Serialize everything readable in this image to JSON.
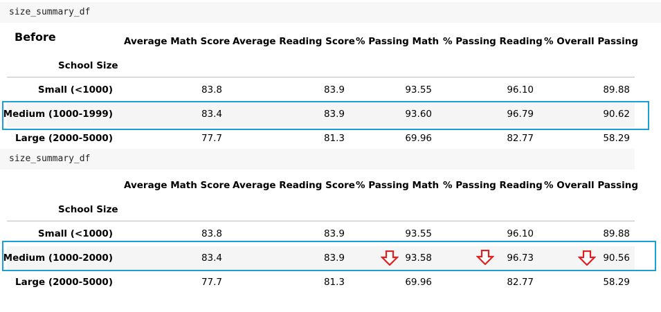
{
  "code_label": "size_summary_df",
  "before_label": "Before",
  "columns": [
    "Average Math Score",
    "Average Reading Score",
    "% Passing Math",
    "% Passing Reading",
    "% Overall Passing"
  ],
  "index_name": "School Size",
  "table_before": {
    "rows": [
      {
        "label": "Small (<1000)",
        "values": [
          "83.8",
          "83.9",
          "93.55",
          "96.10",
          "89.88"
        ]
      },
      {
        "label": "Medium (1000-1999)",
        "values": [
          "83.4",
          "83.9",
          "93.60",
          "96.79",
          "90.62"
        ]
      },
      {
        "label": "Large (2000-5000)",
        "values": [
          "77.7",
          "81.3",
          "69.96",
          "82.77",
          "58.29"
        ]
      }
    ]
  },
  "table_after": {
    "rows": [
      {
        "label": "Small (<1000)",
        "values": [
          "83.8",
          "83.9",
          "93.55",
          "96.10",
          "89.88"
        ]
      },
      {
        "label": "Medium (1000-2000)",
        "values": [
          "83.4",
          "83.9",
          "93.58",
          "96.73",
          "90.56"
        ]
      },
      {
        "label": "Large (2000-5000)",
        "values": [
          "77.7",
          "81.3",
          "69.96",
          "82.77",
          "58.29"
        ]
      }
    ]
  },
  "colors": {
    "highlight": "#1b9fd6",
    "arrow": "#e02020",
    "row_stripe": "#f5f5f5"
  },
  "icons": [
    "down-arrow-icon",
    "down-arrow-icon",
    "down-arrow-icon"
  ]
}
